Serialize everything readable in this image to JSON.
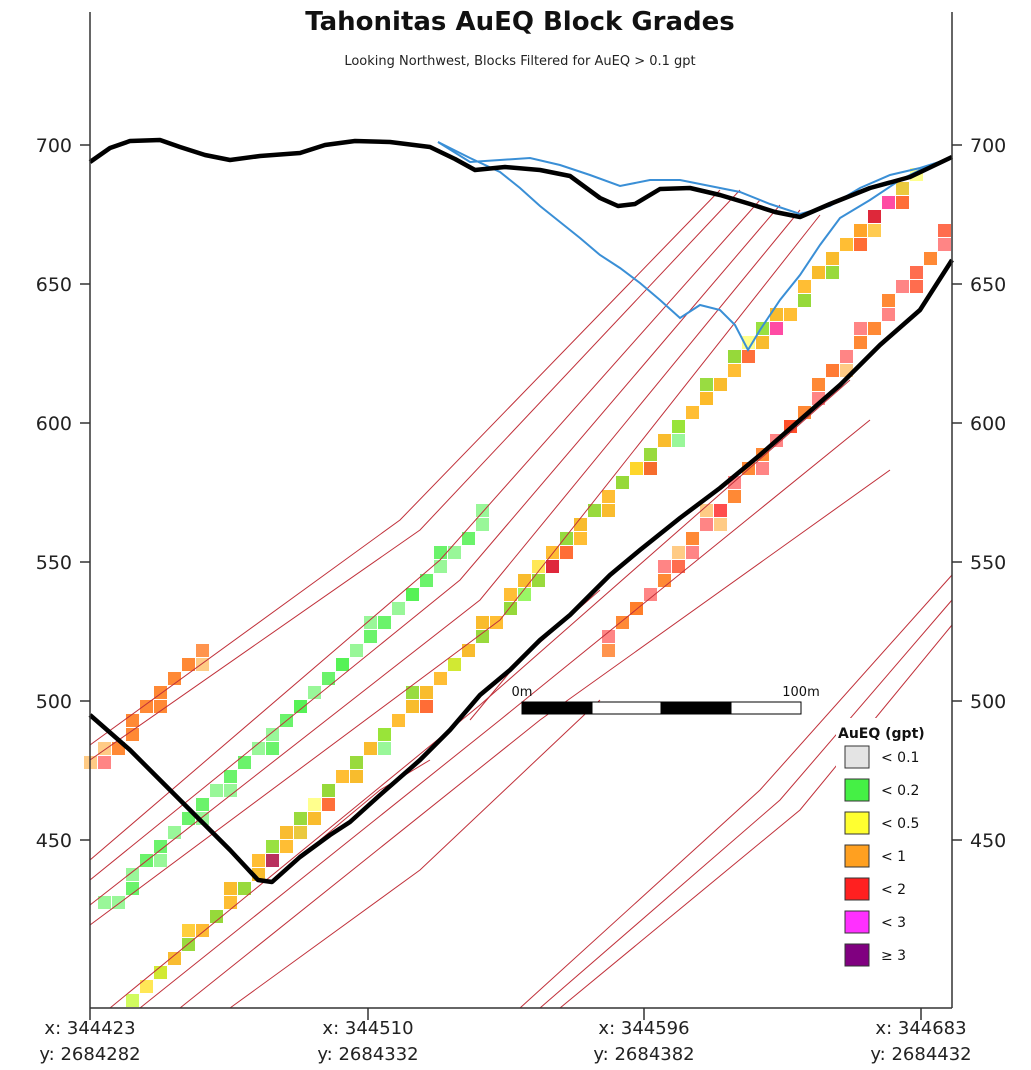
{
  "chart_data": {
    "type": "heatmap",
    "title": "Tahonitas AuEQ Block Grades",
    "subtitle": "Looking Northwest, Blocks Filtered for AuEQ > 0.1 gpt",
    "y_axis": {
      "ticks": [
        700,
        650,
        600,
        550,
        500,
        450
      ],
      "range": [
        400,
        720
      ]
    },
    "x_axis": {
      "ticks": [
        {
          "x": "x: 344423",
          "y": "y: 2684282"
        },
        {
          "x": "x: 344510",
          "y": "y: 2684332"
        },
        {
          "x": "x: 344596",
          "y": "y: 2684382"
        },
        {
          "x": "x: 344683",
          "y": "y: 2684432"
        }
      ]
    },
    "legend": {
      "title": "AuEQ (gpt)",
      "placement": "bottom-right",
      "entries": [
        {
          "label": "< 0.1",
          "color": "#e4e4e4"
        },
        {
          "label": "< 0.2",
          "color": "#45f045"
        },
        {
          "label": "< 0.5",
          "color": "#ffff30"
        },
        {
          "label": "< 1",
          "color": "#ffa020"
        },
        {
          "label": "< 2",
          "color": "#ff2020"
        },
        {
          "label": "< 3",
          "color": "#ff30ff"
        },
        {
          "label": "≥ 3",
          "color": "#800080"
        }
      ]
    },
    "scale_bar": {
      "start_label": "0m",
      "end_label": "100m"
    },
    "surface_profile_color": "#000000",
    "pit_outline_color": "#3a8fd6",
    "wireframe_color": "#c0303a",
    "block_opacity": 0.55
  }
}
